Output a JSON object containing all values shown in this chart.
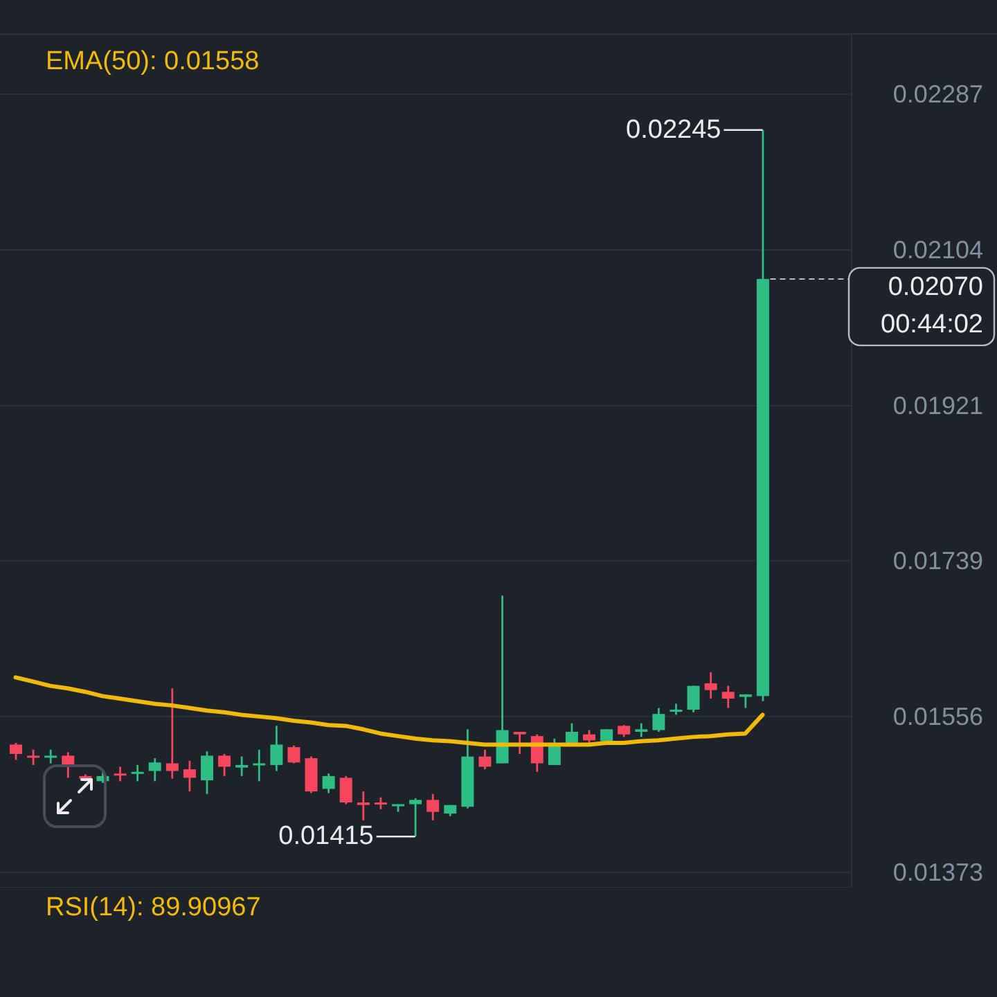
{
  "chart_data": {
    "type": "candlestick",
    "categories": [
      null,
      null,
      null,
      null,
      null,
      null,
      null,
      null,
      null,
      null,
      null,
      null,
      null,
      null,
      null,
      null,
      null,
      null,
      null,
      null,
      null,
      null,
      null,
      null,
      null,
      null,
      null,
      null,
      null,
      null,
      null,
      null,
      null,
      null,
      null,
      null,
      null,
      null,
      null,
      null,
      null,
      null,
      null,
      null
    ],
    "ohlc": [
      [
        0.01523,
        0.01525,
        0.01505,
        0.01512
      ],
      [
        0.0151,
        0.01517,
        0.01499,
        0.01509
      ],
      [
        0.01509,
        0.01517,
        0.01501,
        0.0151
      ],
      [
        0.0151,
        0.01514,
        0.01484,
        0.01497
      ],
      [
        0.01486,
        0.01488,
        0.0148,
        0.01483
      ],
      [
        0.0148,
        0.01491,
        0.01478,
        0.01486
      ],
      [
        0.01489,
        0.01497,
        0.0148,
        0.01488
      ],
      [
        0.01489,
        0.01499,
        0.0148,
        0.01491
      ],
      [
        0.01492,
        0.01507,
        0.0148,
        0.01502
      ],
      [
        0.01501,
        0.01589,
        0.01483,
        0.01492
      ],
      [
        0.01494,
        0.01504,
        0.01468,
        0.01484
      ],
      [
        0.01481,
        0.01515,
        0.01465,
        0.0151
      ],
      [
        0.0151,
        0.01512,
        0.01486,
        0.01497
      ],
      [
        0.01496,
        0.01509,
        0.01486,
        0.01499
      ],
      [
        0.01499,
        0.01517,
        0.0148,
        0.01501
      ],
      [
        0.01499,
        0.01545,
        0.01492,
        0.01523
      ],
      [
        0.0152,
        0.01522,
        0.01501,
        0.01502
      ],
      [
        0.01507,
        0.01509,
        0.01466,
        0.01468
      ],
      [
        0.01471,
        0.01489,
        0.01466,
        0.01486
      ],
      [
        0.01484,
        0.01486,
        0.01453,
        0.01455
      ],
      [
        0.01455,
        0.01468,
        0.01434,
        0.01452
      ],
      [
        0.01455,
        0.01461,
        0.01447,
        0.01453
      ],
      [
        0.01452,
        0.01453,
        0.01444,
        0.01453
      ],
      [
        0.01453,
        0.0146,
        0.01415,
        0.01458
      ],
      [
        0.01458,
        0.01465,
        0.01434,
        0.01444
      ],
      [
        0.01442,
        0.01452,
        0.01439,
        0.01452
      ],
      [
        0.0145,
        0.01541,
        0.01448,
        0.01509
      ],
      [
        0.01509,
        0.01517,
        0.01494,
        0.01497
      ],
      [
        0.01501,
        0.01698,
        0.01501,
        0.0154
      ],
      [
        0.01538,
        0.01538,
        0.01512,
        0.01535
      ],
      [
        0.01533,
        0.01535,
        0.01491,
        0.01501
      ],
      [
        0.01499,
        0.0153,
        0.01499,
        0.01525
      ],
      [
        0.01525,
        0.01548,
        0.01525,
        0.01538
      ],
      [
        0.01535,
        0.0154,
        0.01525,
        0.01528
      ],
      [
        0.01527,
        0.01541,
        0.01527,
        0.01541
      ],
      [
        0.01545,
        0.01546,
        0.01532,
        0.01535
      ],
      [
        0.01538,
        0.01548,
        0.01532,
        0.01541
      ],
      [
        0.0154,
        0.01566,
        0.01538,
        0.01559
      ],
      [
        0.01563,
        0.01571,
        0.01558,
        0.01564
      ],
      [
        0.01564,
        0.01592,
        0.01561,
        0.01592
      ],
      [
        0.01595,
        0.01608,
        0.01577,
        0.01587
      ],
      [
        0.01585,
        0.01592,
        0.01566,
        0.01577
      ],
      [
        0.01579,
        0.01582,
        0.01566,
        0.01582
      ],
      [
        0.0158,
        0.02245,
        0.01574,
        0.0207
      ]
    ],
    "colors": [
      "#f6465d",
      "#f6465d",
      "#2ebd85",
      "#f6465d",
      "#f6465d",
      "#2ebd85",
      "#f6465d",
      "#2ebd85",
      "#2ebd85",
      "#f6465d",
      "#f6465d",
      "#2ebd85",
      "#f6465d",
      "#2ebd85",
      "#2ebd85",
      "#2ebd85",
      "#f6465d",
      "#f6465d",
      "#2ebd85",
      "#f6465d",
      "#f6465d",
      "#f6465d",
      "#2ebd85",
      "#2ebd85",
      "#f6465d",
      "#2ebd85",
      "#2ebd85",
      "#f6465d",
      "#2ebd85",
      "#f6465d",
      "#f6465d",
      "#2ebd85",
      "#2ebd85",
      "#f6465d",
      "#2ebd85",
      "#f6465d",
      "#2ebd85",
      "#2ebd85",
      "#2ebd85",
      "#2ebd85",
      "#f6465d",
      "#f6465d",
      "#2ebd85",
      "#2ebd85"
    ],
    "series": [
      {
        "name": "EMA(50): 0.01558",
        "type": "line",
        "color": "#f0b90b",
        "values": [
          0.01602,
          0.01597,
          0.01592,
          0.01589,
          0.01585,
          0.0158,
          0.01577,
          0.01574,
          0.01571,
          0.01569,
          0.01566,
          0.01563,
          0.01561,
          0.01558,
          0.01556,
          0.01554,
          0.01551,
          0.01549,
          0.01546,
          0.01545,
          0.01541,
          0.01536,
          0.01533,
          0.0153,
          0.01528,
          0.01527,
          0.01525,
          0.01523,
          0.01523,
          0.01523,
          0.01523,
          0.01523,
          0.01523,
          0.01523,
          0.01525,
          0.01525,
          0.01527,
          0.01528,
          0.0153,
          0.01532,
          0.01533,
          0.01535,
          0.01536,
          0.01558
        ]
      }
    ],
    "ylim": [
      0.01355,
      0.02357
    ],
    "yticks": [
      0.01373,
      0.01556,
      0.01739,
      0.01921,
      0.02104,
      0.02287
    ],
    "annotations": [
      "0.02245",
      "0.01415",
      "0.02070",
      "00:44:02",
      "RSI(14): 89.90967"
    ],
    "grid": "y",
    "legend": "top left",
    "tick_labels": "y"
  }
}
